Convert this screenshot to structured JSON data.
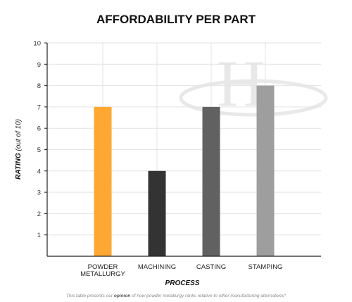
{
  "chart_data": {
    "type": "bar",
    "title": "AFFORDABILITY PER PART",
    "xlabel": "PROCESS",
    "ylabel_bold": "RATING",
    "ylabel_rest": " (out of 10)",
    "categories": [
      [
        "POWDER",
        "METALLURGY"
      ],
      [
        "MACHINING"
      ],
      [
        "CASTING"
      ],
      [
        "STAMPING"
      ]
    ],
    "values": [
      7,
      4,
      7,
      8
    ],
    "colors": [
      "#ffa733",
      "#333333",
      "#616161",
      "#9e9e9e"
    ],
    "ylim": [
      0,
      10
    ],
    "yticks": [
      1,
      2,
      3,
      4,
      5,
      6,
      7,
      8,
      9,
      10
    ],
    "grid": true,
    "footnote": {
      "before": "This table presents our ",
      "emphasis": "opinion",
      "after": " of how powder metallurgy ranks relative to other manufacturing alternatives*"
    },
    "watermark": "H"
  }
}
